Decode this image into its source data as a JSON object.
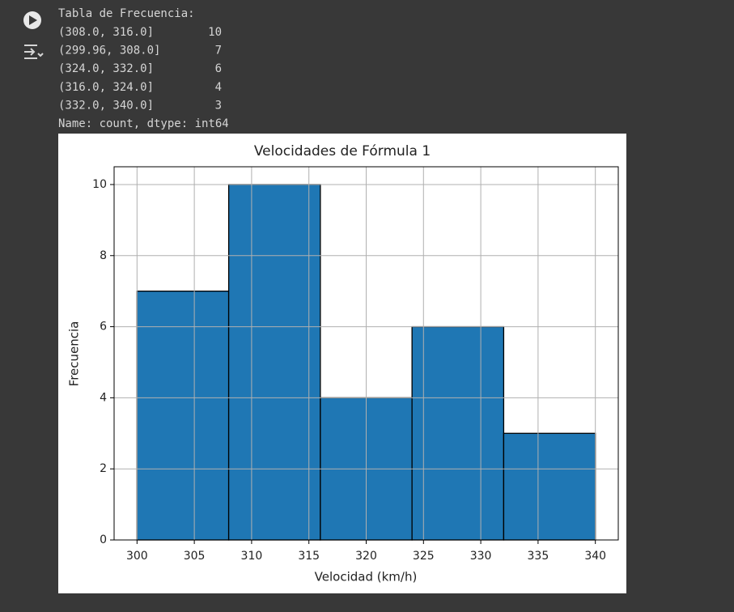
{
  "output": {
    "title": "Tabla de Frecuencia:",
    "rows": [
      [
        "(308.0, 316.0]",
        10
      ],
      [
        "(299.96, 308.0]",
        7
      ],
      [
        "(324.0, 332.0]",
        6
      ],
      [
        "(316.0, 324.0]",
        4
      ],
      [
        "(332.0, 340.0]",
        3
      ]
    ],
    "footer": "Name: count, dtype: int64"
  },
  "chart_data": {
    "type": "histogram",
    "title": "Velocidades de Fórmula 1",
    "x_label": "Velocidad (km/h)",
    "y_label": "Frecuencia",
    "bins": [
      300,
      308,
      316,
      324,
      332,
      340
    ],
    "values": [
      7,
      10,
      4,
      6,
      3
    ],
    "color": "#1f77b4",
    "edge_color": "#000000",
    "xlim": [
      298,
      342
    ],
    "ylim": [
      0,
      10.5
    ],
    "xticks": [
      300,
      305,
      310,
      315,
      320,
      325,
      330,
      335,
      340
    ],
    "yticks": [
      0,
      2,
      4,
      6,
      8,
      10
    ],
    "grid": true
  }
}
